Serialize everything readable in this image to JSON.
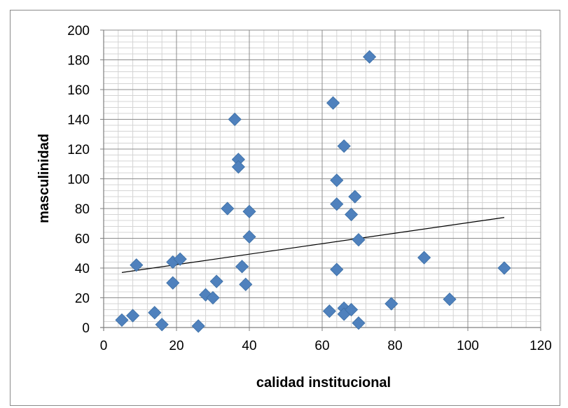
{
  "chart_data": {
    "type": "scatter",
    "title": "",
    "xlabel": "calidad institucional",
    "ylabel": "masculinidad",
    "xlim": [
      0,
      120
    ],
    "ylim": [
      0,
      200
    ],
    "x_ticks": [
      0,
      20,
      40,
      60,
      80,
      100,
      120
    ],
    "y_ticks": [
      0,
      20,
      40,
      60,
      80,
      100,
      120,
      140,
      160,
      180,
      200
    ],
    "grid": "major and minor",
    "marker": "diamond",
    "marker_color": "#4f81bd",
    "trendline": {
      "type": "linear",
      "x": [
        5,
        110
      ],
      "y": [
        37,
        74
      ]
    },
    "points": [
      {
        "x": 5,
        "y": 5
      },
      {
        "x": 8,
        "y": 8
      },
      {
        "x": 9,
        "y": 42
      },
      {
        "x": 14,
        "y": 10
      },
      {
        "x": 16,
        "y": 2
      },
      {
        "x": 19,
        "y": 44
      },
      {
        "x": 19,
        "y": 30
      },
      {
        "x": 21,
        "y": 46
      },
      {
        "x": 26,
        "y": 1
      },
      {
        "x": 28,
        "y": 22
      },
      {
        "x": 30,
        "y": 20
      },
      {
        "x": 31,
        "y": 31
      },
      {
        "x": 34,
        "y": 80
      },
      {
        "x": 36,
        "y": 140
      },
      {
        "x": 37,
        "y": 113
      },
      {
        "x": 37,
        "y": 108
      },
      {
        "x": 38,
        "y": 41
      },
      {
        "x": 39,
        "y": 29
      },
      {
        "x": 40,
        "y": 78
      },
      {
        "x": 40,
        "y": 61
      },
      {
        "x": 62,
        "y": 11
      },
      {
        "x": 63,
        "y": 151
      },
      {
        "x": 64,
        "y": 99
      },
      {
        "x": 64,
        "y": 83
      },
      {
        "x": 64,
        "y": 39
      },
      {
        "x": 66,
        "y": 122
      },
      {
        "x": 66,
        "y": 13
      },
      {
        "x": 66,
        "y": 9
      },
      {
        "x": 68,
        "y": 76
      },
      {
        "x": 68,
        "y": 12
      },
      {
        "x": 69,
        "y": 88
      },
      {
        "x": 70,
        "y": 59
      },
      {
        "x": 70,
        "y": 3
      },
      {
        "x": 73,
        "y": 182
      },
      {
        "x": 79,
        "y": 16
      },
      {
        "x": 88,
        "y": 47
      },
      {
        "x": 95,
        "y": 19
      },
      {
        "x": 110,
        "y": 40
      }
    ]
  }
}
